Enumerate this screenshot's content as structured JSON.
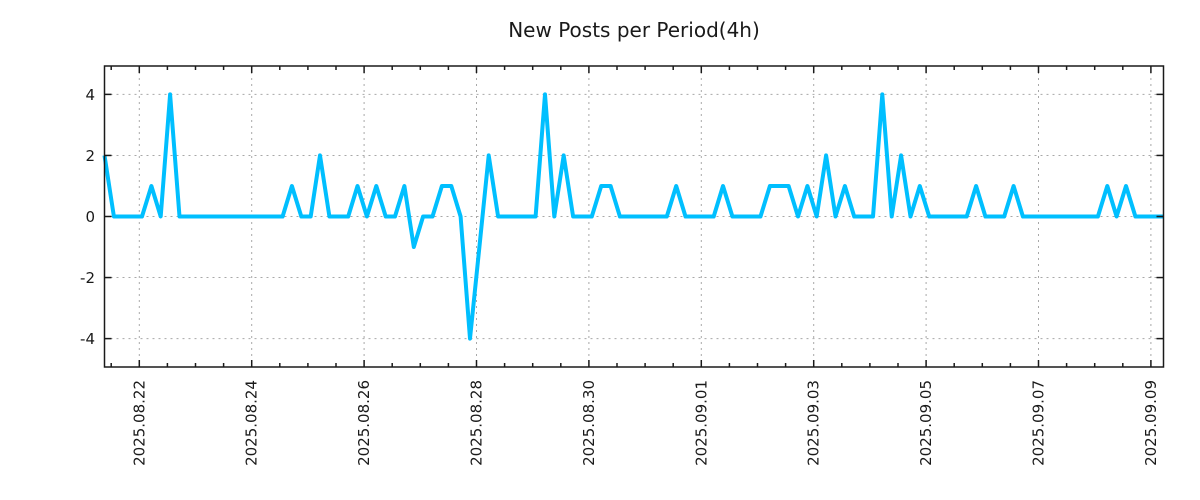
{
  "chart_data": {
    "type": "line",
    "title": "New Posts per Period(4h)",
    "period_label": "4h",
    "grid": true,
    "legend_position": "none",
    "x_axis": {
      "tick_labels": [
        "2025.08.22",
        "2025.08.24",
        "2025.08.26",
        "2025.08.28",
        "2025.08.30",
        "2025.09.01",
        "2025.09.03",
        "2025.09.05",
        "2025.09.07",
        "2025.09.09"
      ],
      "major_tick_spacing": "2 days",
      "minor_tick_spacing": "12 hours",
      "points_interval": "4 hours",
      "start_approx": "2025.08.21 ~09:00",
      "end_approx": "2025.09.09 ~05:00"
    },
    "y_axis": {
      "ticks": [
        -4,
        -2,
        0,
        2,
        4
      ],
      "tick_labels": [
        "-4",
        "-2",
        "0",
        "2",
        "4"
      ],
      "ylim": [
        -4.93,
        4.93
      ]
    },
    "series": [
      {
        "color": "#00BFFF",
        "values": [
          2,
          0,
          0,
          0,
          0,
          1,
          0,
          4,
          0,
          0,
          0,
          0,
          0,
          0,
          0,
          0,
          0,
          0,
          0,
          0,
          1,
          0,
          0,
          2,
          0,
          0,
          0,
          1,
          0,
          1,
          0,
          0,
          1,
          -1,
          0,
          0,
          1,
          1,
          0,
          -4,
          -1,
          2,
          0,
          0,
          0,
          0,
          0,
          4,
          0,
          2,
          0,
          0,
          0,
          1,
          1,
          0,
          0,
          0,
          0,
          0,
          0,
          1,
          0,
          0,
          0,
          0,
          1,
          0,
          0,
          0,
          0,
          1,
          1,
          1,
          0,
          1,
          0,
          2,
          0,
          1,
          0,
          0,
          0,
          4,
          0,
          2,
          0,
          1,
          0,
          0,
          0,
          0,
          0,
          1,
          0,
          0,
          0,
          1,
          0,
          0,
          0,
          0,
          0,
          0,
          0,
          0,
          0,
          1,
          0,
          1,
          0,
          0,
          0,
          0
        ]
      }
    ]
  },
  "colors": {
    "background": "#ffffff",
    "line": "#00BFFF",
    "grid": "#a8a8a8",
    "axis": "#1a1a1a",
    "text": "#1a1a1a"
  }
}
